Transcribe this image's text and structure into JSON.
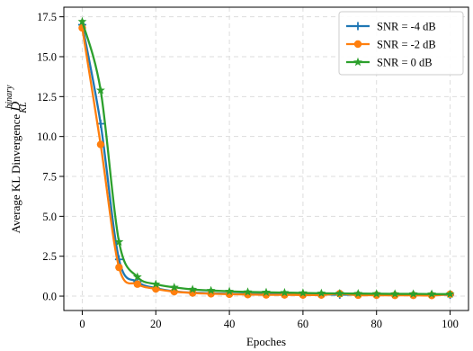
{
  "chart_data": {
    "type": "line",
    "xlabel": "Epoches",
    "ylabel": {
      "prefix": "Average KL Dinvergence ",
      "symbol": "D",
      "superscript": "binary",
      "subscript": "KL"
    },
    "xlim": [
      -5,
      105
    ],
    "ylim": [
      -0.9,
      18.1
    ],
    "xticks": [
      0,
      20,
      40,
      60,
      80,
      100
    ],
    "xtick_labels": [
      "0",
      "20",
      "40",
      "60",
      "80",
      "100"
    ],
    "yticks": [
      0,
      2.5,
      5,
      7.5,
      10,
      12.5,
      15,
      17.5
    ],
    "ytick_labels": [
      "0.0",
      "2.5",
      "5.0",
      "7.5",
      "10.0",
      "12.5",
      "15.0",
      "17.5"
    ],
    "grid": true,
    "legend_position": "top-right",
    "series": [
      {
        "name": "SNR = -4 dB",
        "color": "#1f77b4",
        "marker": "plus",
        "x": [
          0,
          5,
          10,
          15,
          20,
          25,
          30,
          35,
          40,
          45,
          50,
          55,
          60,
          65,
          70,
          75,
          80,
          85,
          90,
          95,
          100
        ],
        "y": [
          17.0,
          10.8,
          2.3,
          0.9,
          0.5,
          0.3,
          0.22,
          0.18,
          0.15,
          0.13,
          0.12,
          0.11,
          0.1,
          0.1,
          0.09,
          0.09,
          0.08,
          0.08,
          0.08,
          0.08,
          0.08
        ]
      },
      {
        "name": "SNR = -2 dB",
        "color": "#ff7f0e",
        "marker": "circle",
        "x": [
          0,
          5,
          10,
          15,
          20,
          25,
          30,
          35,
          40,
          45,
          50,
          55,
          60,
          65,
          70,
          75,
          80,
          85,
          90,
          95,
          100
        ],
        "y": [
          16.8,
          9.5,
          1.8,
          0.75,
          0.45,
          0.28,
          0.2,
          0.15,
          0.12,
          0.1,
          0.08,
          0.08,
          0.07,
          0.07,
          0.15,
          0.06,
          0.06,
          0.05,
          0.05,
          0.04,
          0.12
        ]
      },
      {
        "name": "SNR = 0 dB",
        "color": "#2ca02c",
        "marker": "star",
        "x": [
          0,
          5,
          10,
          15,
          20,
          25,
          30,
          35,
          40,
          45,
          50,
          55,
          60,
          65,
          70,
          75,
          80,
          85,
          90,
          95,
          100
        ],
        "y": [
          17.2,
          12.9,
          3.4,
          1.2,
          0.75,
          0.55,
          0.42,
          0.35,
          0.3,
          0.26,
          0.24,
          0.22,
          0.2,
          0.18,
          0.17,
          0.16,
          0.15,
          0.14,
          0.14,
          0.13,
          0.13
        ]
      }
    ]
  }
}
